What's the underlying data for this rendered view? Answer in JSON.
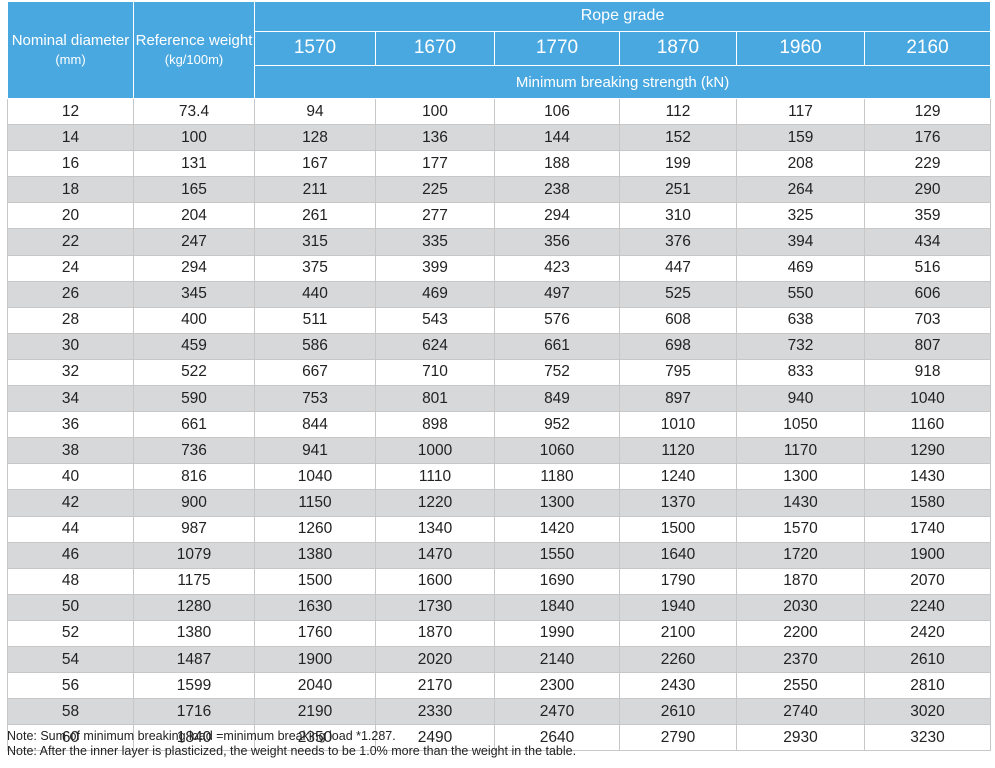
{
  "header": {
    "nominal_diameter": "Nominal diameter",
    "nominal_diameter_unit": "(mm)",
    "reference_weight": "Reference weight",
    "reference_weight_unit": "(kg/100m)",
    "rope_grade": "Rope grade",
    "grades": [
      "1570",
      "1670",
      "1770",
      "1870",
      "1960",
      "2160"
    ],
    "min_breaking_strength": "Minimum breaking strength (kN)"
  },
  "rows": [
    [
      "12",
      "73.4",
      "94",
      "100",
      "106",
      "112",
      "117",
      "129"
    ],
    [
      "14",
      "100",
      "128",
      "136",
      "144",
      "152",
      "159",
      "176"
    ],
    [
      "16",
      "131",
      "167",
      "177",
      "188",
      "199",
      "208",
      "229"
    ],
    [
      "18",
      "165",
      "211",
      "225",
      "238",
      "251",
      "264",
      "290"
    ],
    [
      "20",
      "204",
      "261",
      "277",
      "294",
      "310",
      "325",
      "359"
    ],
    [
      "22",
      "247",
      "315",
      "335",
      "356",
      "376",
      "394",
      "434"
    ],
    [
      "24",
      "294",
      "375",
      "399",
      "423",
      "447",
      "469",
      "516"
    ],
    [
      "26",
      "345",
      "440",
      "469",
      "497",
      "525",
      "550",
      "606"
    ],
    [
      "28",
      "400",
      "511",
      "543",
      "576",
      "608",
      "638",
      "703"
    ],
    [
      "30",
      "459",
      "586",
      "624",
      "661",
      "698",
      "732",
      "807"
    ],
    [
      "32",
      "522",
      "667",
      "710",
      "752",
      "795",
      "833",
      "918"
    ],
    [
      "34",
      "590",
      "753",
      "801",
      "849",
      "897",
      "940",
      "1040"
    ],
    [
      "36",
      "661",
      "844",
      "898",
      "952",
      "1010",
      "1050",
      "1160"
    ],
    [
      "38",
      "736",
      "941",
      "1000",
      "1060",
      "1120",
      "1170",
      "1290"
    ],
    [
      "40",
      "816",
      "1040",
      "1110",
      "1180",
      "1240",
      "1300",
      "1430"
    ],
    [
      "42",
      "900",
      "1150",
      "1220",
      "1300",
      "1370",
      "1430",
      "1580"
    ],
    [
      "44",
      "987",
      "1260",
      "1340",
      "1420",
      "1500",
      "1570",
      "1740"
    ],
    [
      "46",
      "1079",
      "1380",
      "1470",
      "1550",
      "1640",
      "1720",
      "1900"
    ],
    [
      "48",
      "1175",
      "1500",
      "1600",
      "1690",
      "1790",
      "1870",
      "2070"
    ],
    [
      "50",
      "1280",
      "1630",
      "1730",
      "1840",
      "1940",
      "2030",
      "2240"
    ],
    [
      "52",
      "1380",
      "1760",
      "1870",
      "1990",
      "2100",
      "2200",
      "2420"
    ],
    [
      "54",
      "1487",
      "1900",
      "2020",
      "2140",
      "2260",
      "2370",
      "2610"
    ],
    [
      "56",
      "1599",
      "2040",
      "2170",
      "2300",
      "2430",
      "2550",
      "2810"
    ],
    [
      "58",
      "1716",
      "2190",
      "2330",
      "2470",
      "2610",
      "2740",
      "3020"
    ],
    [
      "60",
      "1840",
      "2350",
      "2490",
      "2640",
      "2790",
      "2930",
      "3230"
    ]
  ],
  "notes": [
    "Note: Sum of minimum breaking load =minimum breaking load *1.287.",
    "Note: After the inner layer is plasticized, the weight needs to be 1.0% more than the weight in the table."
  ],
  "colors": {
    "header_bg": "#4aa8e0",
    "stripe_bg": "#d7d8da"
  }
}
